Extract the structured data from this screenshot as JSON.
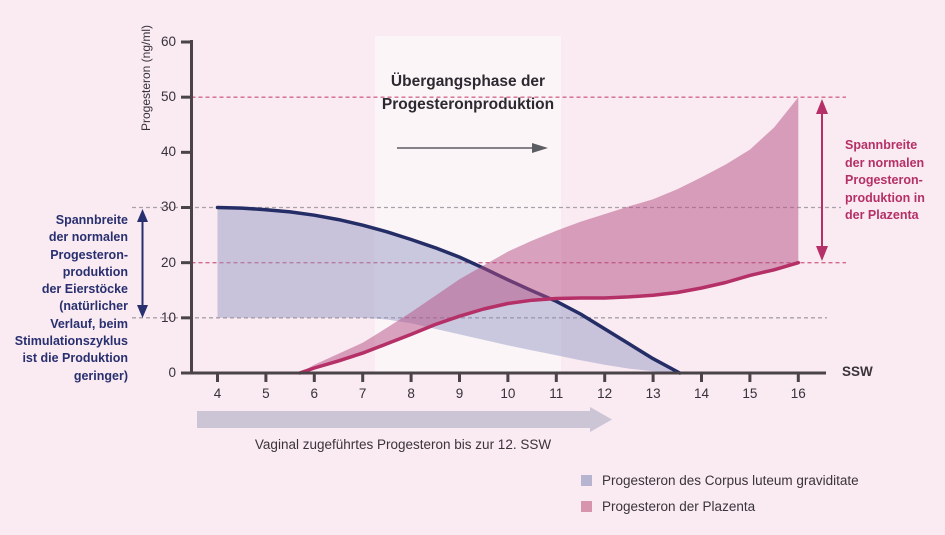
{
  "chart_data": {
    "type": "area",
    "title": "Übergangsphase der\nProgesteronproduktion",
    "ylabel": "Progesteron (ng/ml)",
    "xlabel": "SSW",
    "xlim": [
      4,
      16
    ],
    "ylim": [
      0,
      60
    ],
    "x_ticks": [
      4,
      5,
      6,
      7,
      8,
      9,
      10,
      11,
      12,
      13,
      14,
      15,
      16
    ],
    "y_ticks": [
      0,
      10,
      20,
      30,
      40,
      50,
      60
    ],
    "gridlines": [
      {
        "y": 50,
        "color": "pink"
      },
      {
        "y": 30,
        "color": "gray"
      },
      {
        "y": 20,
        "color": "pink"
      },
      {
        "y": 10,
        "color": "gray"
      }
    ],
    "highlight_band": {
      "x_start": 7.25,
      "x_end": 11.1
    },
    "series": [
      {
        "name": "Progesteron des Corpus luteum graviditate",
        "fill": "rgba(141,147,194,0.45)",
        "line_color": "#242d66",
        "line_edge": "upper",
        "upper": [
          [
            4,
            30
          ],
          [
            4.5,
            29.9
          ],
          [
            5,
            29.6
          ],
          [
            5.5,
            29.2
          ],
          [
            6,
            28.6
          ],
          [
            6.5,
            27.8
          ],
          [
            7,
            26.8
          ],
          [
            7.5,
            25.6
          ],
          [
            8,
            24.2
          ],
          [
            8.5,
            22.7
          ],
          [
            9,
            21
          ],
          [
            9.5,
            19
          ],
          [
            10,
            16.9
          ],
          [
            10.5,
            14.9
          ],
          [
            11,
            13
          ],
          [
            11.5,
            10.7
          ],
          [
            12,
            8
          ],
          [
            12.5,
            5.3
          ],
          [
            13,
            2.6
          ],
          [
            13.55,
            0
          ]
        ],
        "lower": [
          [
            4,
            10
          ],
          [
            5,
            10
          ],
          [
            6,
            10
          ],
          [
            7,
            10
          ],
          [
            7.5,
            9.7
          ],
          [
            8,
            9
          ],
          [
            8.5,
            8
          ],
          [
            9,
            7
          ],
          [
            9.5,
            6
          ],
          [
            10,
            5
          ],
          [
            10.5,
            4.1
          ],
          [
            11,
            3.2
          ],
          [
            11.5,
            2.3
          ],
          [
            12,
            1.5
          ],
          [
            12.5,
            0.8
          ],
          [
            13,
            0.3
          ],
          [
            13.4,
            0
          ]
        ]
      },
      {
        "name": "Progesteron der Plazenta",
        "fill": "rgba(180,78,131,0.5)",
        "line_color": "#b43067",
        "line_edge": "lower",
        "upper": [
          [
            5.7,
            0
          ],
          [
            6,
            1.5
          ],
          [
            6.5,
            3.5
          ],
          [
            7,
            5.5
          ],
          [
            7.5,
            8.2
          ],
          [
            8,
            11
          ],
          [
            8.5,
            14
          ],
          [
            9,
            17
          ],
          [
            9.5,
            19.5
          ],
          [
            10,
            22
          ],
          [
            10.5,
            24
          ],
          [
            11,
            25.8
          ],
          [
            11.5,
            27.4
          ],
          [
            12,
            28.8
          ],
          [
            12.5,
            30.2
          ],
          [
            13,
            31.5
          ],
          [
            13.5,
            33.3
          ],
          [
            14,
            35.5
          ],
          [
            14.5,
            37.8
          ],
          [
            15,
            40.5
          ],
          [
            15.5,
            44.5
          ],
          [
            16,
            50
          ]
        ],
        "lower": [
          [
            5.7,
            0
          ],
          [
            6,
            0.9
          ],
          [
            6.5,
            2.2
          ],
          [
            7,
            3.6
          ],
          [
            7.5,
            5.3
          ],
          [
            8,
            7
          ],
          [
            8.5,
            8.8
          ],
          [
            9,
            10.3
          ],
          [
            9.5,
            11.6
          ],
          [
            10,
            12.6
          ],
          [
            10.5,
            13.2
          ],
          [
            11,
            13.5
          ],
          [
            11.5,
            13.6
          ],
          [
            12,
            13.6
          ],
          [
            12.5,
            13.8
          ],
          [
            13,
            14.1
          ],
          [
            13.5,
            14.6
          ],
          [
            14,
            15.4
          ],
          [
            14.5,
            16.4
          ],
          [
            15,
            17.7
          ],
          [
            15.5,
            18.7
          ],
          [
            16,
            20
          ]
        ]
      }
    ],
    "left_range_arrow": {
      "from": 10,
      "to": 30
    },
    "right_range_arrow": {
      "from": 20,
      "to": 50
    }
  },
  "colors": {
    "background": "#faeaf1",
    "highlight_band": "#fcf5f8",
    "grid_pink": "#d06a8c",
    "grid_gray": "#a9a0a8",
    "axis": "#4a4449",
    "navy": "#242d66",
    "magenta": "#b43067",
    "bottom_band": "#cbc5d6",
    "transition_arrow": "#5c5c63",
    "legend_swatch_luteum": "#b7b4d2",
    "legend_swatch_plazenta": "#d795ad"
  },
  "annotations": {
    "transition_label": "Übergangsphase der\nProgesteronproduktion",
    "left_text": "Spannbreite\nder normalen\nProgesteron-\nproduktion\nder Eierstöcke\n(natürlicher\nVerlauf, beim\nStimulationszyklus\nist die Produktion\ngeringer)",
    "right_text": "Spannbreite\nder normalen\nProgesteron-\nproduktion in\nder Plazenta",
    "bottom_band_label": "Vaginal zugeführtes Progesteron bis zur 12. SSW",
    "x_axis_unit": "SSW",
    "y_axis_label": "Progesteron (ng/ml)"
  },
  "legend": {
    "items": [
      {
        "label": "Progesteron des Corpus luteum graviditate",
        "color": "#b7b4d2"
      },
      {
        "label": "Progesteron der Plazenta",
        "color": "#d795ad"
      }
    ]
  }
}
